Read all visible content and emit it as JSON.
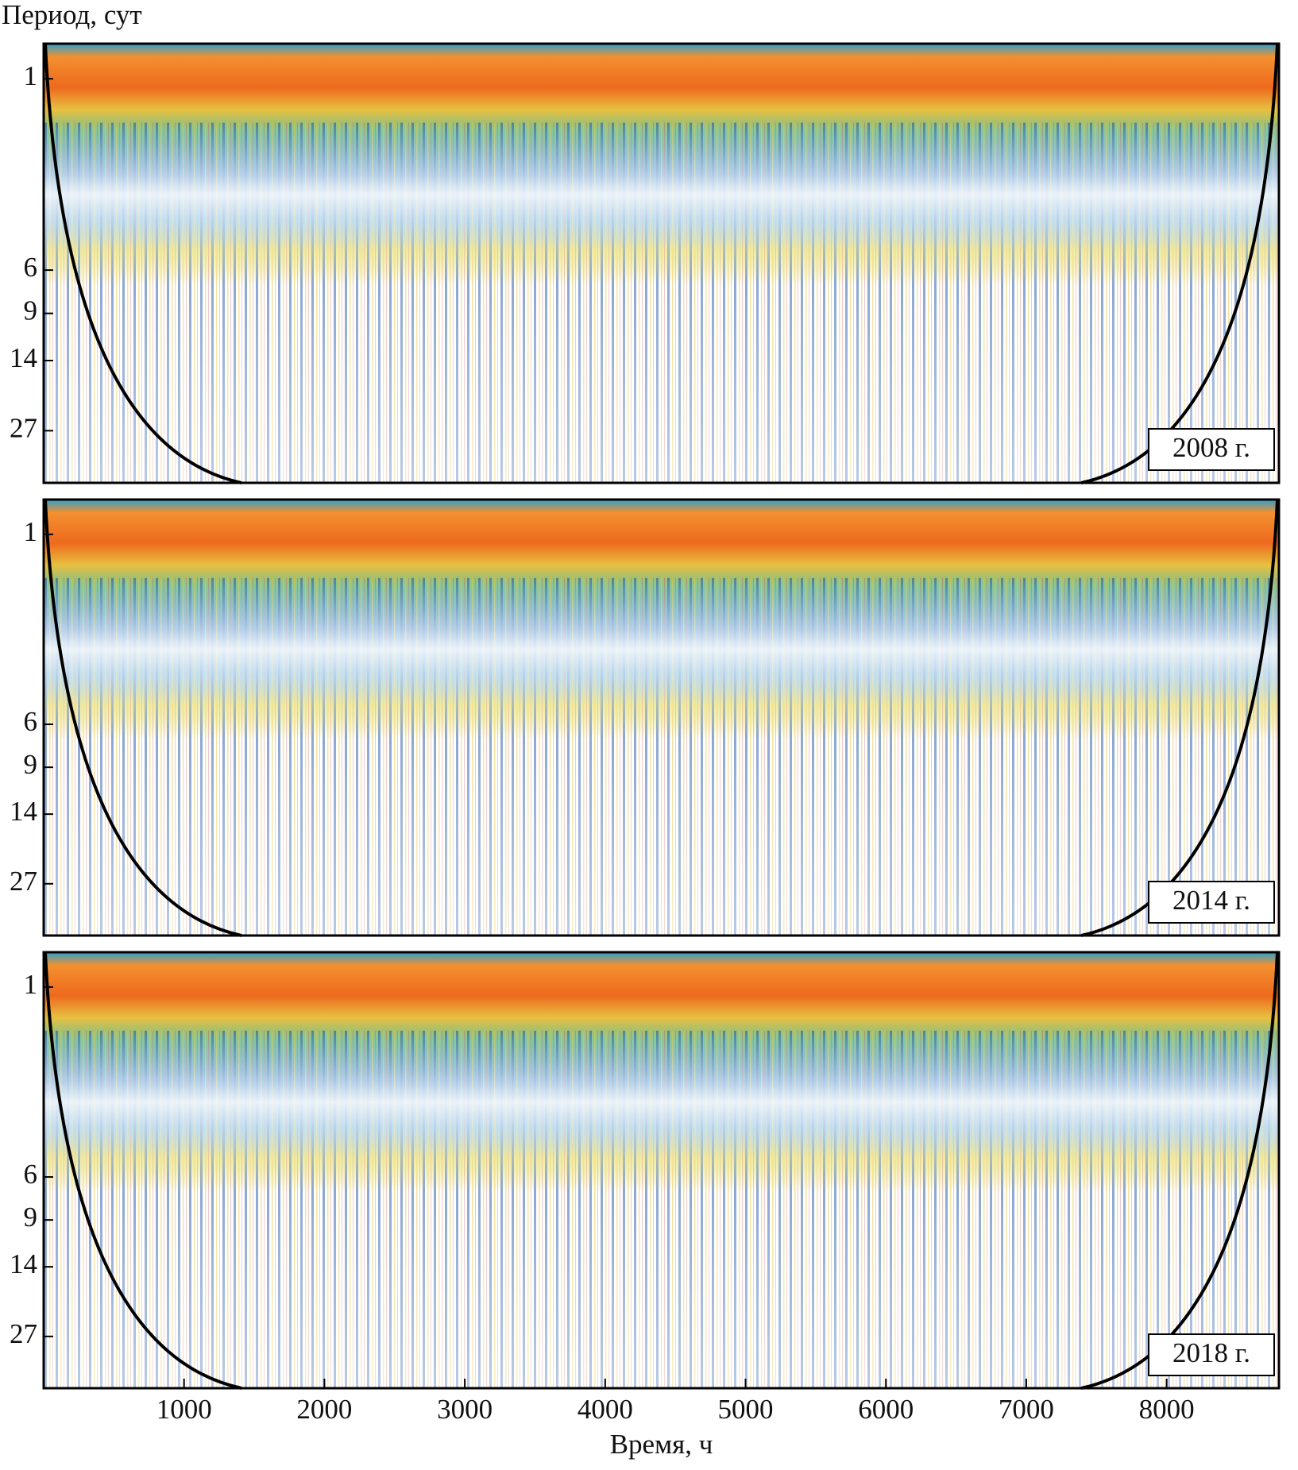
{
  "chart_data": [
    {
      "type": "scalogram",
      "ylabel": "Период, сут",
      "annotation": "2008 г.",
      "xlim": [
        0,
        8800
      ],
      "ylim": [
        0.72,
        44
      ],
      "ylog": true,
      "yreversed": true,
      "yticks": [
        1,
        6,
        9,
        14,
        27
      ]
    },
    {
      "type": "scalogram",
      "annotation": "2014 г.",
      "xlim": [
        0,
        8800
      ],
      "ylim": [
        0.72,
        44
      ],
      "ylog": true,
      "yreversed": true,
      "yticks": [
        1,
        6,
        9,
        14,
        27
      ]
    },
    {
      "type": "scalogram",
      "annotation": "2018 г.",
      "xlabel": "Время, ч",
      "xlim": [
        0,
        8800
      ],
      "ylim": [
        0.72,
        44
      ],
      "ylog": true,
      "yreversed": true,
      "yticks": [
        1,
        6,
        9,
        14,
        27
      ],
      "xticks": [
        1000,
        2000,
        3000,
        4000,
        5000,
        6000,
        7000,
        8000
      ]
    }
  ]
}
